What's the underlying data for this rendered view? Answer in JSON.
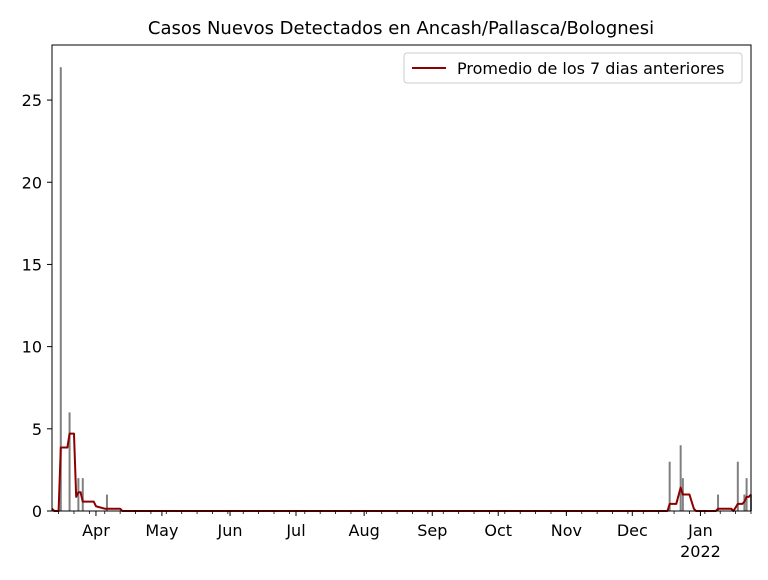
{
  "chart_data": {
    "type": "bar",
    "title": "Casos Nuevos Detectados en Ancash/Pallasca/Bolognesi",
    "xlabel": "",
    "ylabel": "",
    "x_axis": {
      "type": "date",
      "range": [
        "2021-03-12",
        "2022-01-24"
      ],
      "tick_labels": [
        {
          "date": "2021-04-01",
          "label": "Apr"
        },
        {
          "date": "2021-05-01",
          "label": "May"
        },
        {
          "date": "2021-06-01",
          "label": "Jun"
        },
        {
          "date": "2021-07-01",
          "label": "Jul"
        },
        {
          "date": "2021-08-01",
          "label": "Aug"
        },
        {
          "date": "2021-09-01",
          "label": "Sep"
        },
        {
          "date": "2021-10-01",
          "label": "Oct"
        },
        {
          "date": "2021-11-01",
          "label": "Nov"
        },
        {
          "date": "2021-12-01",
          "label": "Dec"
        },
        {
          "date": "2022-01-01",
          "label": "Jan"
        }
      ],
      "year_label": {
        "date": "2022-01-01",
        "label": "2022"
      }
    },
    "y_axis": {
      "ylim": [
        0,
        28.35
      ],
      "ticks": [
        0,
        5,
        10,
        15,
        20,
        25
      ],
      "tick_labels": [
        "0",
        "5",
        "10",
        "15",
        "20",
        "25"
      ]
    },
    "grid": false,
    "legend": {
      "placement": "top-right",
      "entries": [
        "Promedio de los 7 dias anteriores"
      ]
    },
    "series": [
      {
        "kind": "bar",
        "color": "#808080",
        "points": [
          {
            "x": "2021-03-16",
            "y": 27
          },
          {
            "x": "2021-03-20",
            "y": 6
          },
          {
            "x": "2021-03-24",
            "y": 2
          },
          {
            "x": "2021-03-26",
            "y": 2
          },
          {
            "x": "2021-04-06",
            "y": 1
          },
          {
            "x": "2021-12-18",
            "y": 3
          },
          {
            "x": "2021-12-23",
            "y": 4
          },
          {
            "x": "2021-12-24",
            "y": 2
          },
          {
            "x": "2022-01-09",
            "y": 1
          },
          {
            "x": "2022-01-18",
            "y": 3
          },
          {
            "x": "2022-01-21",
            "y": 1
          },
          {
            "x": "2022-01-22",
            "y": 2
          },
          {
            "x": "2022-01-24",
            "y": 1
          }
        ]
      },
      {
        "name": "Promedio de los 7 dias anteriores",
        "kind": "line",
        "color": "#8b0000",
        "points": [
          {
            "x": "2021-03-12",
            "y": 0.14
          },
          {
            "x": "2021-03-13",
            "y": 0
          },
          {
            "x": "2021-03-15",
            "y": 0
          },
          {
            "x": "2021-03-16",
            "y": 3.86
          },
          {
            "x": "2021-03-19",
            "y": 3.86
          },
          {
            "x": "2021-03-20",
            "y": 4.71
          },
          {
            "x": "2021-03-22",
            "y": 4.71
          },
          {
            "x": "2021-03-23",
            "y": 0.86
          },
          {
            "x": "2021-03-24",
            "y": 1.14
          },
          {
            "x": "2021-03-25",
            "y": 1.14
          },
          {
            "x": "2021-03-26",
            "y": 0.57
          },
          {
            "x": "2021-03-31",
            "y": 0.57
          },
          {
            "x": "2021-04-01",
            "y": 0.29
          },
          {
            "x": "2021-04-05",
            "y": 0.14
          },
          {
            "x": "2021-04-12",
            "y": 0.14
          },
          {
            "x": "2021-04-13",
            "y": 0
          },
          {
            "x": "2021-12-17",
            "y": 0
          },
          {
            "x": "2021-12-18",
            "y": 0.43
          },
          {
            "x": "2021-12-21",
            "y": 0.43
          },
          {
            "x": "2021-12-23",
            "y": 1.43
          },
          {
            "x": "2021-12-24",
            "y": 1.0
          },
          {
            "x": "2021-12-27",
            "y": 1.0
          },
          {
            "x": "2021-12-29",
            "y": 0.14
          },
          {
            "x": "2021-12-30",
            "y": 0
          },
          {
            "x": "2022-01-08",
            "y": 0
          },
          {
            "x": "2022-01-09",
            "y": 0.14
          },
          {
            "x": "2022-01-15",
            "y": 0.14
          },
          {
            "x": "2022-01-16",
            "y": 0
          },
          {
            "x": "2022-01-18",
            "y": 0.43
          },
          {
            "x": "2022-01-20",
            "y": 0.43
          },
          {
            "x": "2022-01-21",
            "y": 0.57
          },
          {
            "x": "2022-01-22",
            "y": 0.86
          },
          {
            "x": "2022-01-23",
            "y": 0.86
          },
          {
            "x": "2022-01-24",
            "y": 1.0
          }
        ]
      }
    ]
  }
}
